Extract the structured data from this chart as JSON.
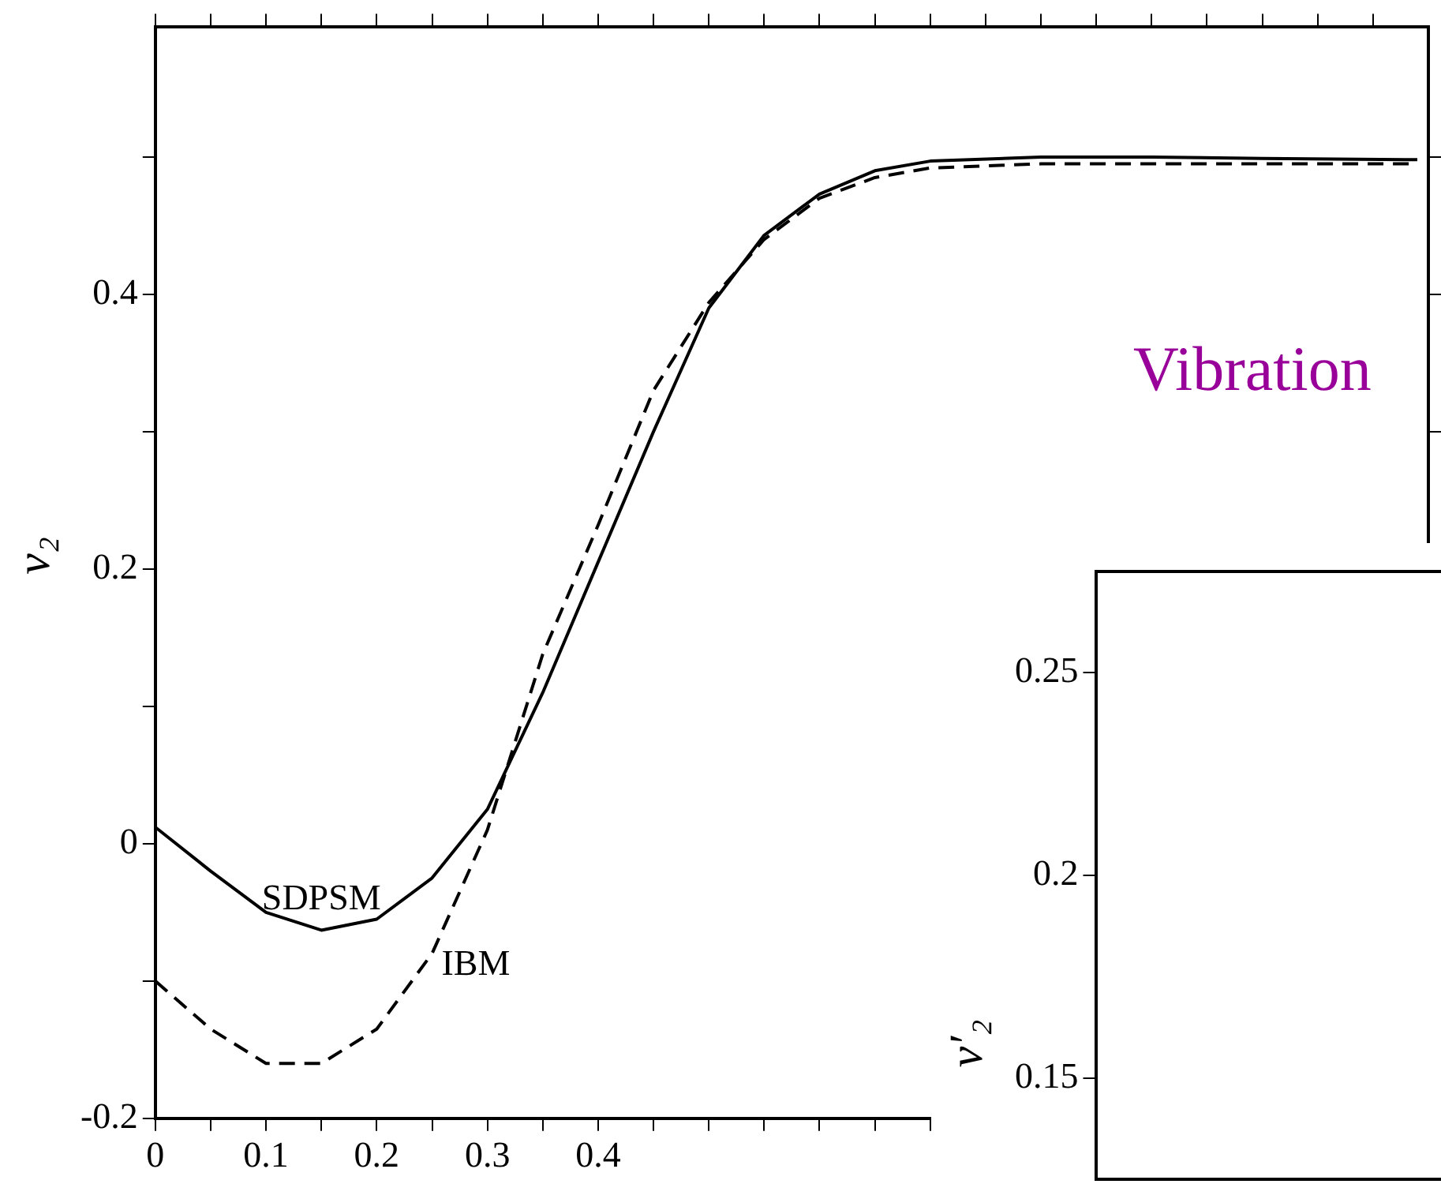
{
  "chart_data": [
    {
      "type": "line",
      "ylabel": "v₂",
      "xlim": [
        0,
        1.15
      ],
      "ylim": [
        -0.2,
        0.595
      ],
      "xticks": [
        0,
        {
          "value": 0.05,
          "label": null
        },
        0.1,
        {
          "value": 0.15,
          "label": null
        },
        0.2,
        {
          "value": 0.25,
          "label": null
        },
        0.3,
        {
          "value": 0.35,
          "label": null
        },
        0.4,
        {
          "value": 0.45,
          "label": null
        },
        {
          "value": 0.5,
          "label": null
        },
        {
          "value": 0.55,
          "label": null
        },
        {
          "value": 0.6,
          "label": null
        },
        {
          "value": 0.65,
          "label": null
        },
        {
          "value": 0.7,
          "label": null
        },
        {
          "value": 0.75,
          "label": null
        },
        {
          "value": 0.8,
          "label": null
        },
        {
          "value": 0.85,
          "label": null
        },
        {
          "value": 0.9,
          "label": null
        },
        {
          "value": 0.95,
          "label": null
        },
        {
          "value": 1,
          "label": null
        },
        {
          "value": 1.05,
          "label": null
        },
        {
          "value": 1.1,
          "label": null
        }
      ],
      "yticks": [
        -0.2,
        {
          "value": -0.1,
          "label": null
        },
        0,
        {
          "value": 0.1,
          "label": null
        },
        0.2,
        {
          "value": 0.3,
          "label": null
        },
        0.4,
        {
          "value": 0.5,
          "label": null
        }
      ],
      "grid": false,
      "legend": false,
      "marker": "none",
      "series": [
        {
          "name": "SDPSM",
          "color": "#000000",
          "line_style": "solid",
          "x": [
            0,
            0.05,
            0.1,
            0.15,
            0.2,
            0.25,
            0.3,
            0.35,
            0.4,
            0.45,
            0.5,
            0.55,
            0.6,
            0.65,
            0.7,
            0.8,
            0.9,
            1,
            1.14
          ],
          "values": [
            0.012,
            -0.02,
            -0.05,
            -0.063,
            -0.055,
            -0.025,
            0.025,
            0.11,
            0.205,
            0.3,
            0.39,
            0.443,
            0.473,
            0.49,
            0.497,
            0.5,
            0.5,
            0.499,
            0.498
          ]
        },
        {
          "name": "IBM",
          "color": "#000000",
          "line_style": "dashed",
          "x": [
            0,
            0.05,
            0.1,
            0.15,
            0.2,
            0.25,
            0.3,
            0.35,
            0.4,
            0.45,
            0.5,
            0.55,
            0.6,
            0.65,
            0.7,
            0.8,
            0.9,
            1,
            1.14
          ],
          "values": [
            -0.1,
            -0.135,
            -0.16,
            -0.16,
            -0.135,
            -0.08,
            0.01,
            0.138,
            0.232,
            0.33,
            0.394,
            0.44,
            0.47,
            0.485,
            0.492,
            0.495,
            0.495,
            0.495,
            0.495
          ]
        }
      ],
      "annotations": [
        "Vibration"
      ]
    },
    {
      "type": "other",
      "ylabel": "v′₂",
      "annotations": [
        "0.25",
        "0.2",
        "0.15"
      ]
    }
  ]
}
